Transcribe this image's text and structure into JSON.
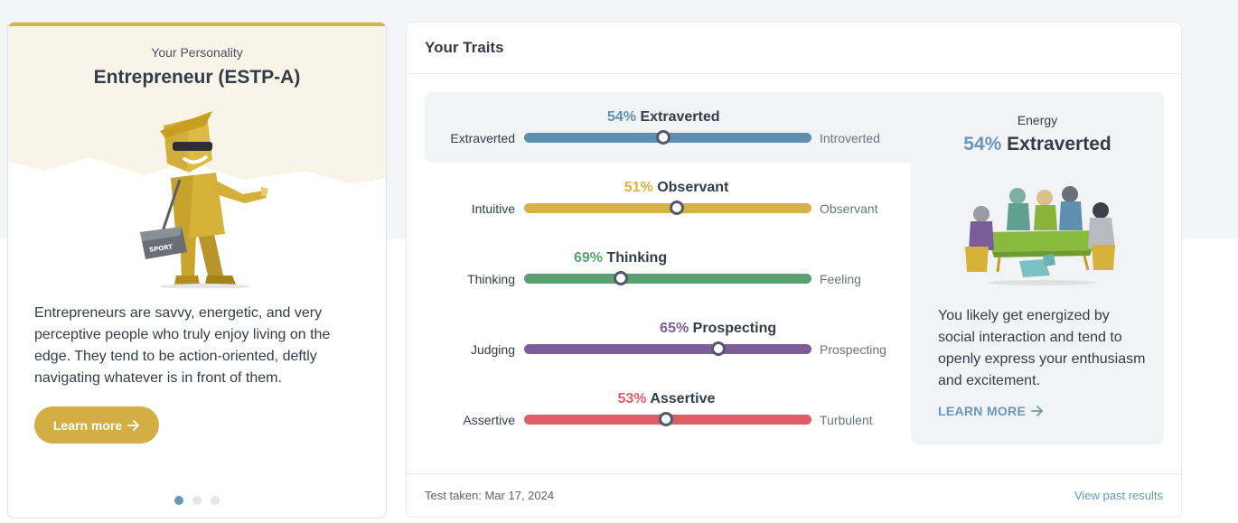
{
  "personality": {
    "eyebrow": "Your Personality",
    "title": "Entrepreneur (ESTP-A)",
    "description": "Entrepreneurs are savvy, energetic, and very perceptive people who truly enjoy living on the edge. They tend to be action-oriented, deftly navigating whatever is in front of them.",
    "button_label": "Learn more",
    "bag_label": "SPORT",
    "carousel": {
      "count": 3,
      "active": 1
    }
  },
  "traits": {
    "header": "Your Traits",
    "items": [
      {
        "pct": "54%",
        "label": "Extraverted",
        "left": "Extraverted",
        "right": "Introverted",
        "color": "#5f8fb0",
        "knob": 0.485
      },
      {
        "pct": "51%",
        "label": "Observant",
        "left": "Intuitive",
        "right": "Observant",
        "color": "#d5b24c",
        "knob": 0.53
      },
      {
        "pct": "69%",
        "label": "Thinking",
        "left": "Thinking",
        "right": "Feeling",
        "color": "#5e9e73",
        "knob": 0.335
      },
      {
        "pct": "65%",
        "label": "Prospecting",
        "left": "Judging",
        "right": "Prospecting",
        "color": "#7e5d99",
        "knob": 0.675
      },
      {
        "pct": "53%",
        "label": "Assertive",
        "left": "Assertive",
        "right": "Turbulent",
        "color": "#d96066",
        "knob": 0.495
      }
    ],
    "detail": {
      "eyebrow": "Energy",
      "pct": "54%",
      "label": "Extraverted",
      "description": "You likely get energized by social interaction and tend to openly express your enthusiasm and excitement.",
      "link": "LEARN MORE"
    },
    "footer": {
      "test_taken": "Test taken: Mar 17, 2024",
      "past_results": "View past results"
    }
  },
  "icons": {
    "arrow": "arrow-right-icon"
  }
}
